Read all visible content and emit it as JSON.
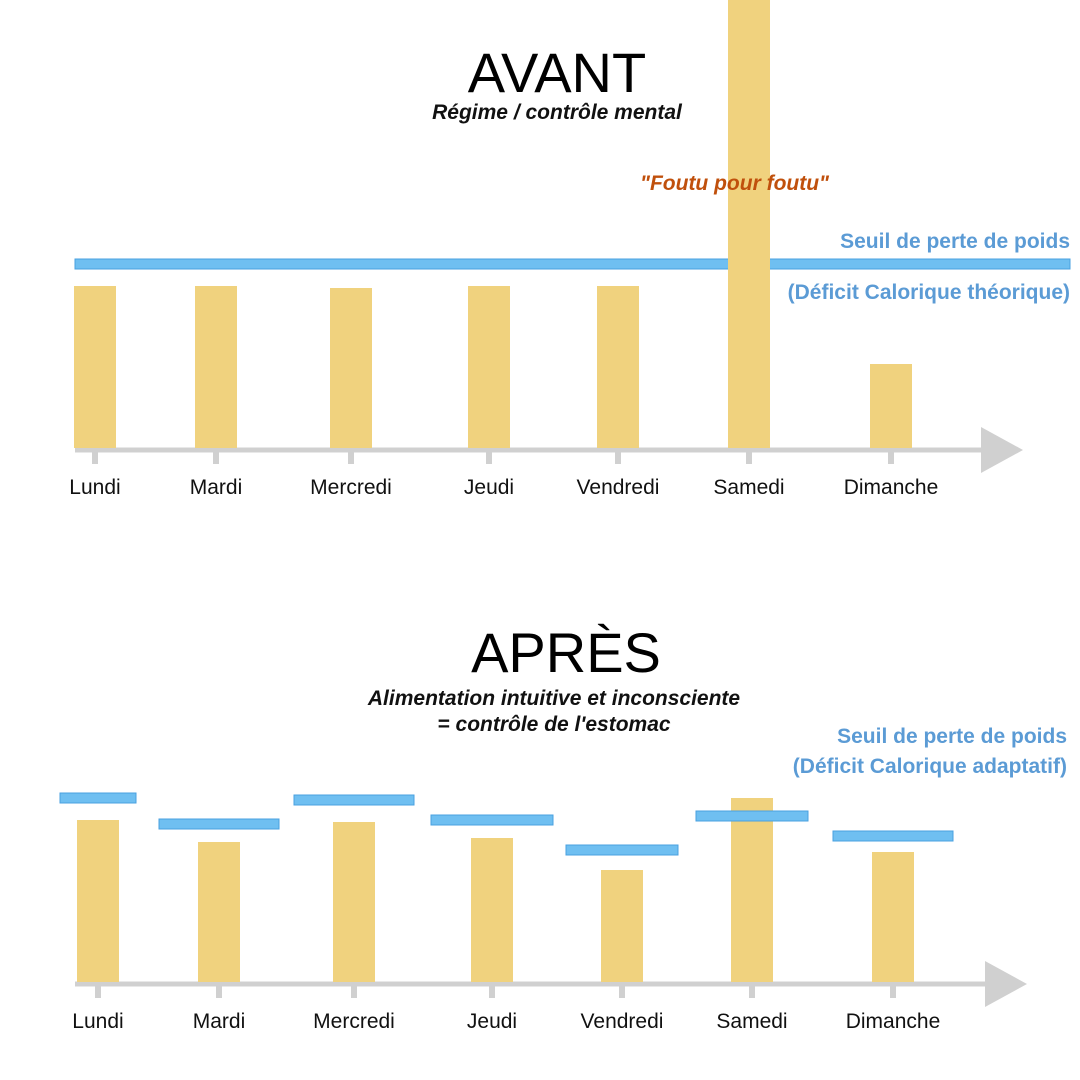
{
  "chart_data": [
    {
      "type": "bar",
      "title": "AVANT",
      "subtitle": "Régime / contrôle mental",
      "categories": [
        "Lundi",
        "Mardi",
        "Mercredi",
        "Jeudi",
        "Vendredi",
        "Samedi",
        "Dimanche"
      ],
      "values": [
        81,
        81,
        80,
        81,
        81,
        230,
        42
      ],
      "threshold": {
        "value": 92,
        "label_line1": "Seuil de perte de poids",
        "label_line2": "(Déficit Calorique théorique)",
        "type": "constant"
      },
      "annotation": {
        "text": "\"Foutu pour foutu\"",
        "category": "Samedi"
      },
      "ylim": [
        0,
        230
      ],
      "colors": {
        "bar": "#f0d27e",
        "threshold": "#6fbff1",
        "threshold_edge": "#4aa0e0",
        "axis": "#d0d0d0",
        "annotation": "#c0500c",
        "threshold_label": "#5b9bd5"
      }
    },
    {
      "type": "bar",
      "title": "APRÈS",
      "subtitle_line1": "Alimentation intuitive et inconsciente",
      "subtitle_line2": "= contrôle de l'estomac",
      "categories": [
        "Lundi",
        "Mardi",
        "Mercredi",
        "Jeudi",
        "Vendredi",
        "Samedi",
        "Dimanche"
      ],
      "values": [
        81,
        70,
        80,
        72,
        56,
        92,
        65
      ],
      "thresholds": [
        92,
        79,
        91,
        81,
        66,
        83,
        73
      ],
      "threshold": {
        "label_line1": "Seuil de perte de poids",
        "label_line2": "(Déficit Calorique adaptatif)",
        "type": "per-day"
      },
      "ylim": [
        0,
        100
      ],
      "colors": {
        "bar": "#f0d27e",
        "threshold": "#6fbff1",
        "threshold_edge": "#4aa0e0",
        "axis": "#d0d0d0",
        "threshold_label": "#5b9bd5"
      }
    }
  ]
}
